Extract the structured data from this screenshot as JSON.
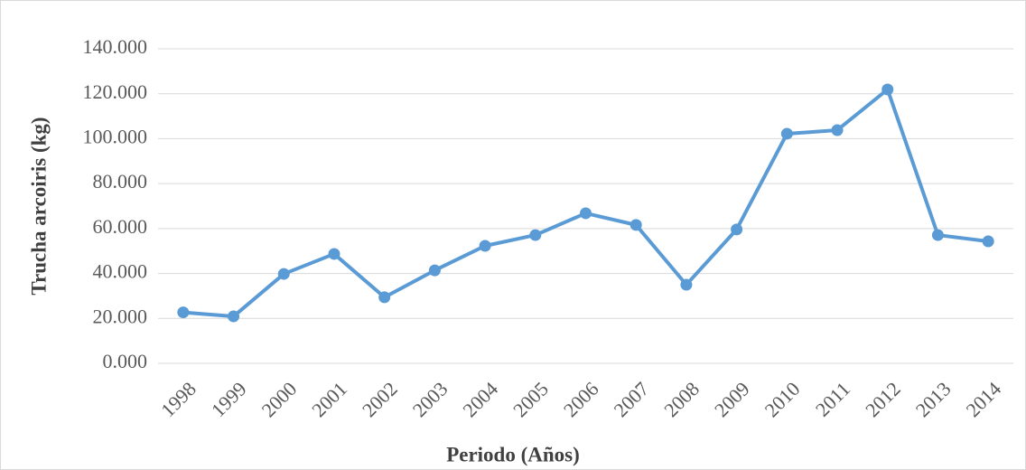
{
  "chart_data": {
    "type": "line",
    "x_label": "Periodo (Años)",
    "y_label": "Trucha arcoiris (kg)",
    "categories": [
      "1998",
      "1999",
      "2000",
      "2001",
      "2002",
      "2003",
      "2004",
      "2005",
      "2006",
      "2007",
      "2008",
      "2009",
      "2010",
      "2011",
      "2012",
      "2013",
      "2014"
    ],
    "values": [
      22700,
      20900,
      39800,
      48700,
      29400,
      41400,
      52300,
      57100,
      66800,
      61600,
      35000,
      59600,
      102200,
      103800,
      121900,
      57100,
      54300
    ],
    "color": "#5b9bd5",
    "ylim": [
      0,
      140000
    ],
    "yticks": [
      {
        "value": 0,
        "label": "0.000"
      },
      {
        "value": 20000,
        "label": "20.000"
      },
      {
        "value": 40000,
        "label": "40.000"
      },
      {
        "value": 60000,
        "label": "60.000"
      },
      {
        "value": 80000,
        "label": "80.000"
      },
      {
        "value": 100000,
        "label": "100.000"
      },
      {
        "value": 120000,
        "label": "120.000"
      },
      {
        "value": 140000,
        "label": "140.000"
      }
    ],
    "grid": true
  }
}
